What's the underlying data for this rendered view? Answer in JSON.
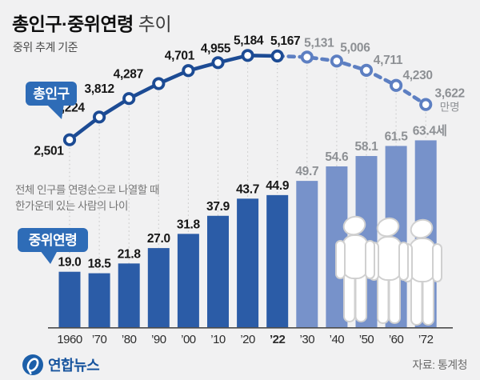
{
  "header": {
    "title_main": "총인구·중위연령",
    "title_suffix": "추이",
    "subtitle": "중위 추계 기준"
  },
  "annotation": {
    "median_desc": "전체 인구를 연령순으로 나열할 때\n한가운데 있는 사람의 나이"
  },
  "footer": {
    "logo_text": "연합뉴스",
    "source": "자료: 통계청"
  },
  "colors": {
    "background": "#f1f1f2",
    "bar_actual": "#2b5ca7",
    "bar_projection": "#7792ca",
    "line_actual": "#1c4b94",
    "line_projection": "#5d7fc2",
    "label_black": "#161616",
    "label_gray": "#8d9094",
    "bubble_blue": "#2e6cb7",
    "axis_gray": "#4b4b4b",
    "gridline_gray": "#c8c8c8",
    "logo_blue": "#1c5fa9"
  },
  "chart_data": {
    "type": "combo-line-bar",
    "categories": [
      "1960",
      "’70",
      "’80",
      "’90",
      "’00",
      "’10",
      "’20",
      "’22",
      "’30",
      "’40",
      "’50",
      "’60",
      "’72"
    ],
    "bold_category_index": 7,
    "actual_count": 8,
    "series": [
      {
        "name": "총인구",
        "type": "line",
        "unit": "만명",
        "values": [
          2501,
          3224,
          3812,
          4287,
          4701,
          4955,
          5184,
          5167,
          5131,
          5006,
          4711,
          4230,
          3622
        ],
        "labels": [
          "2,501",
          "3,224",
          "3,812",
          "4,287",
          "4,701",
          "4,955",
          "5,184",
          "5,167",
          "5,131",
          "5,006",
          "4,711",
          "4,230",
          "3,622"
        ]
      },
      {
        "name": "중위연령",
        "type": "bar",
        "unit": "세",
        "values": [
          19.0,
          18.5,
          21.8,
          27.0,
          31.8,
          37.9,
          43.7,
          44.9,
          49.7,
          54.6,
          58.1,
          61.5,
          63.4
        ],
        "labels": [
          "19.0",
          "18.5",
          "21.8",
          "27.0",
          "31.8",
          "37.9",
          "43.7",
          "44.9",
          "49.7",
          "54.6",
          "58.1",
          "61.5",
          "63.4세"
        ]
      }
    ],
    "layout_hint": {
      "projection_style": "dashed-line-and-light-bars",
      "gridlines": "dotted-vertical",
      "legend": "callout-bubbles"
    }
  }
}
